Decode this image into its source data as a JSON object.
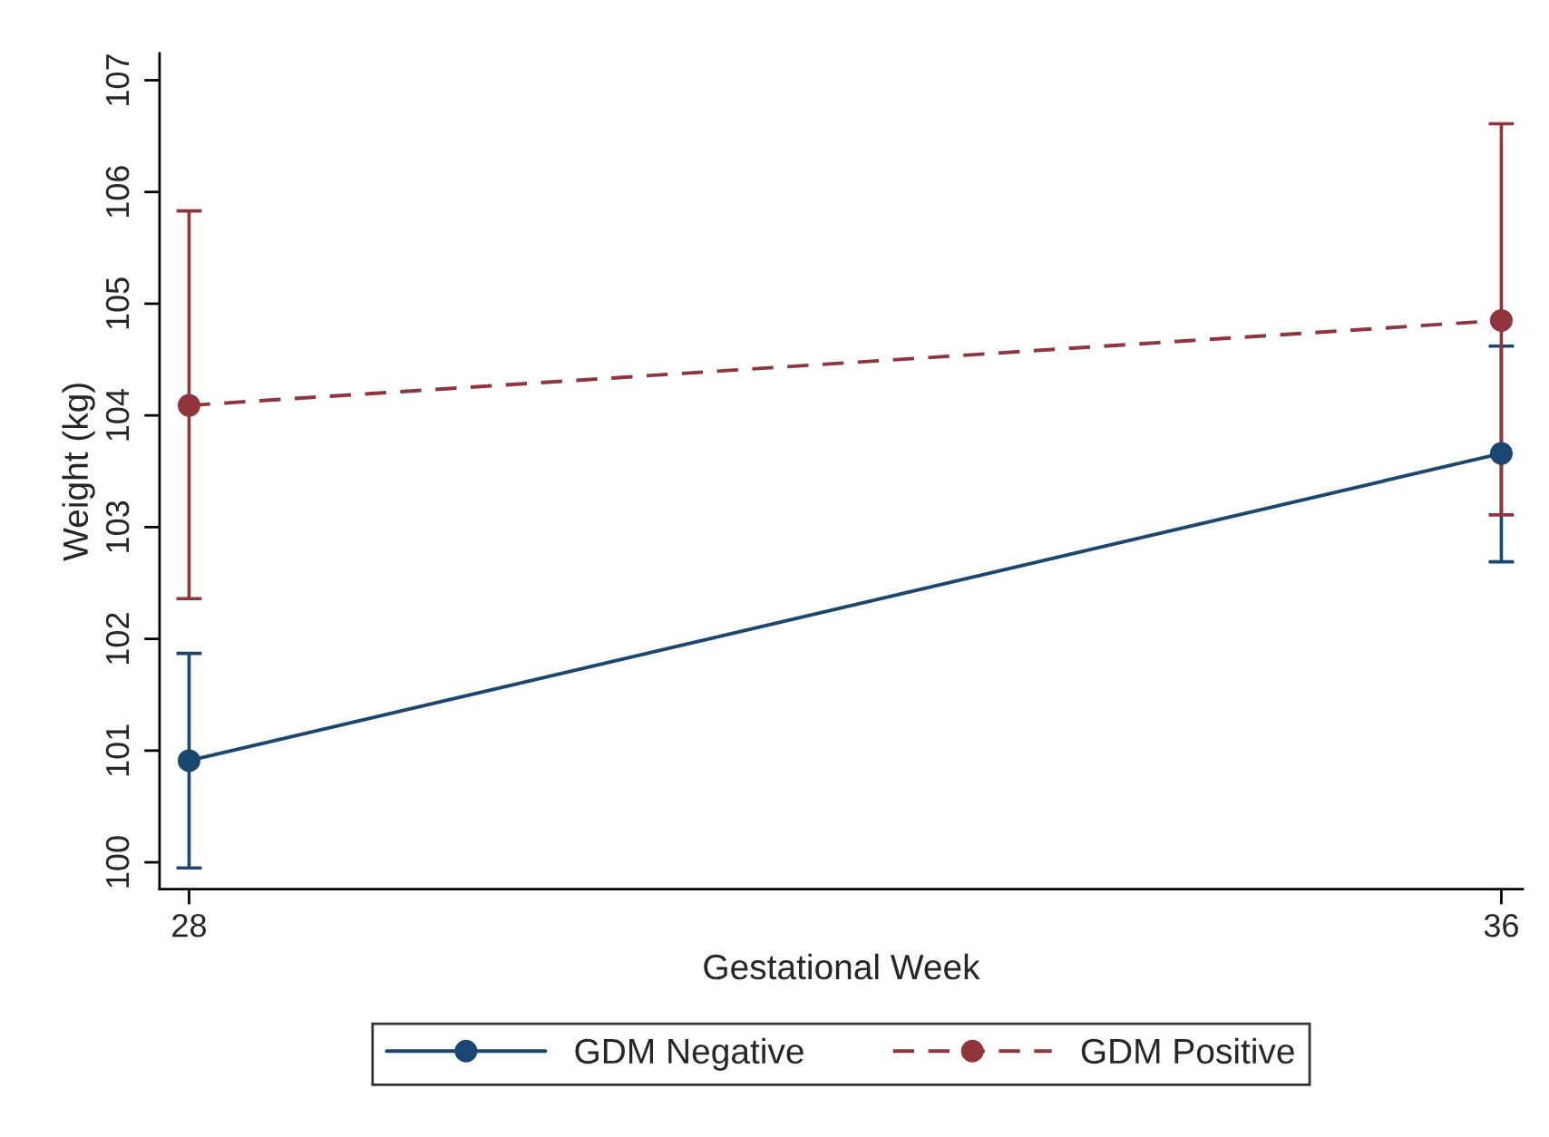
{
  "chart_data": {
    "type": "line",
    "xlabel": "Gestational Week",
    "ylabel": "Weight (kg)",
    "x": [
      28,
      36
    ],
    "xlim": [
      27.82,
      36.13
    ],
    "xticks": [
      28,
      36
    ],
    "ylim": [
      99.76,
      107.24
    ],
    "yticks": [
      100,
      101,
      102,
      103,
      104,
      105,
      106,
      107
    ],
    "grid": false,
    "legend": "bottom",
    "marker": "circle",
    "series": [
      {
        "name": "GDM Negative",
        "color": "#1a476f",
        "line_style": "solid",
        "values": [
          100.91,
          103.66
        ],
        "errors": [
          [
            99.95,
            101.87
          ],
          [
            102.69,
            104.62
          ]
        ]
      },
      {
        "name": "GDM Positive",
        "color": "#90353b",
        "line_style": "dashed",
        "values": [
          104.09,
          104.85
        ],
        "errors": [
          [
            102.36,
            105.83
          ],
          [
            103.11,
            106.61
          ]
        ]
      }
    ]
  }
}
